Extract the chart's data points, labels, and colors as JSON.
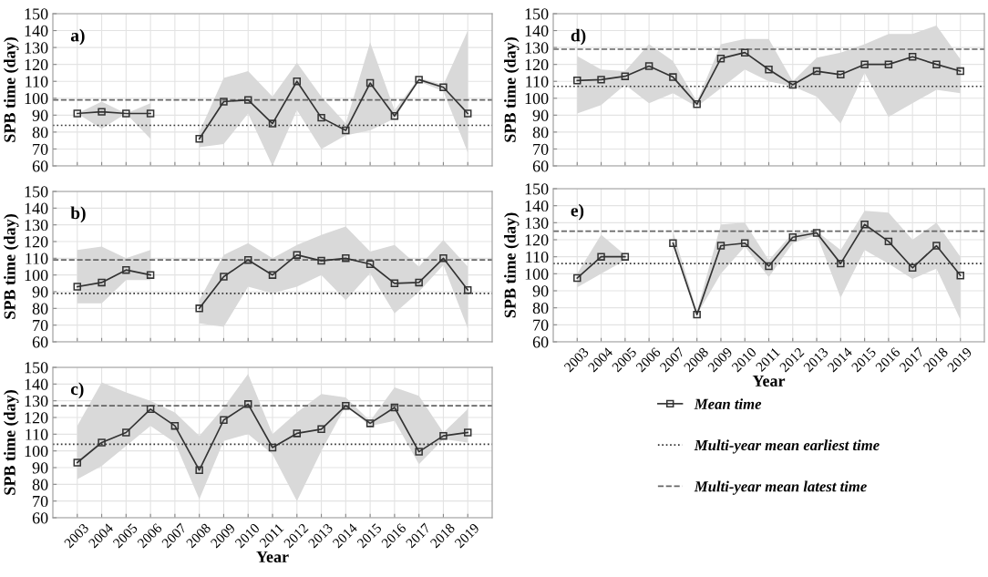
{
  "chart_data": [
    {
      "type": "line",
      "annotations": [
        "a)"
      ],
      "ylabel": "SPB time (day)",
      "categories": [
        "2003",
        "2004",
        "2005",
        "2006",
        "2007",
        "2008",
        "2009",
        "2010",
        "2011",
        "2012",
        "2013",
        "2014",
        "2015",
        "2016",
        "2017",
        "2018",
        "2019"
      ],
      "ylim": [
        60,
        150
      ],
      "yticks": [
        60,
        70,
        80,
        90,
        100,
        110,
        120,
        130,
        140,
        150
      ],
      "grid": true,
      "marker": "square",
      "line_style": "solid",
      "tick_labels": "y",
      "series": [
        {
          "color": "#333333",
          "values": [
            91,
            92,
            91,
            91,
            null,
            76,
            98,
            99,
            85,
            110,
            88.5,
            81,
            109,
            89.5,
            111,
            106.5,
            91
          ],
          "lower": [
            91,
            82,
            91,
            76,
            null,
            71,
            73,
            91,
            60,
            93,
            70,
            78,
            81,
            88,
            110,
            104,
            68
          ],
          "upper": [
            91,
            98,
            91,
            97,
            null,
            80,
            112,
            116,
            101,
            121,
            101,
            85,
            133,
            93,
            112,
            108,
            140
          ]
        }
      ],
      "ref_lines": [
        {
          "axis": "y",
          "value": 99,
          "line_style": "dashed",
          "color": "#666666"
        },
        {
          "axis": "y",
          "value": 84,
          "line_style": "dotted",
          "color": "#333333"
        }
      ]
    },
    {
      "type": "line",
      "annotations": [
        "b)"
      ],
      "ylabel": "SPB time (day)",
      "categories": [
        "2003",
        "2004",
        "2005",
        "2006",
        "2007",
        "2008",
        "2009",
        "2010",
        "2011",
        "2012",
        "2013",
        "2014",
        "2015",
        "2016",
        "2017",
        "2018",
        "2019"
      ],
      "ylim": [
        60,
        150
      ],
      "yticks": [
        60,
        70,
        80,
        90,
        100,
        110,
        120,
        130,
        140,
        150
      ],
      "grid": true,
      "marker": "square",
      "line_style": "solid",
      "tick_labels": "y",
      "series": [
        {
          "color": "#333333",
          "values": [
            93,
            95.5,
            103,
            100,
            null,
            80,
            99,
            109,
            100,
            112,
            108.5,
            110,
            106.5,
            95,
            95.5,
            110,
            91
          ],
          "lower": [
            83,
            83,
            97,
            97,
            null,
            71,
            69,
            93,
            89,
            93,
            100,
            85,
            101,
            77,
            90,
            106,
            68
          ],
          "upper": [
            115,
            117,
            110,
            115,
            null,
            85,
            112,
            119,
            110,
            118,
            124,
            129,
            114,
            118,
            105,
            121,
            105
          ]
        }
      ],
      "ref_lines": [
        {
          "axis": "y",
          "value": 109,
          "line_style": "dashed",
          "color": "#666666"
        },
        {
          "axis": "y",
          "value": 89,
          "line_style": "dotted",
          "color": "#333333"
        }
      ]
    },
    {
      "type": "line",
      "annotations": [
        "c)"
      ],
      "ylabel": "SPB time (day)",
      "xlabel": "Year",
      "categories": [
        "2003",
        "2004",
        "2005",
        "2006",
        "2007",
        "2008",
        "2009",
        "2010",
        "2011",
        "2012",
        "2013",
        "2014",
        "2015",
        "2016",
        "2017",
        "2018",
        "2019"
      ],
      "ylim": [
        60,
        150
      ],
      "yticks": [
        60,
        70,
        80,
        90,
        100,
        110,
        120,
        130,
        140,
        150
      ],
      "grid": true,
      "marker": "square",
      "line_style": "solid",
      "series": [
        {
          "color": "#333333",
          "values": [
            93,
            105,
            111,
            125,
            115,
            88.5,
            118.5,
            128,
            102,
            110.5,
            113,
            127,
            116.5,
            126,
            99.5,
            109,
            111
          ],
          "lower": [
            83,
            91,
            103,
            115,
            105,
            71,
            106,
            110,
            98,
            70,
            100,
            127,
            115,
            118,
            92,
            107,
            105
          ],
          "upper": [
            115,
            141,
            135,
            130,
            123,
            109,
            126,
            146,
            110,
            123,
            134,
            132,
            118,
            138,
            133,
            111,
            125
          ]
        }
      ],
      "ref_lines": [
        {
          "axis": "y",
          "value": 127,
          "line_style": "dashed",
          "color": "#666666"
        },
        {
          "axis": "y",
          "value": 104,
          "line_style": "dotted",
          "color": "#333333"
        }
      ]
    },
    {
      "type": "line",
      "annotations": [
        "d)"
      ],
      "ylabel": "SPB time (day)",
      "categories": [
        "2003",
        "2004",
        "2005",
        "2006",
        "2007",
        "2008",
        "2009",
        "2010",
        "2011",
        "2012",
        "2013",
        "2014",
        "2015",
        "2016",
        "2017",
        "2018",
        "2019"
      ],
      "ylim": [
        60,
        150
      ],
      "yticks": [
        60,
        70,
        80,
        90,
        100,
        110,
        120,
        130,
        140,
        150
      ],
      "grid": true,
      "marker": "square",
      "line_style": "solid",
      "tick_labels": "y",
      "series": [
        {
          "color": "#333333",
          "values": [
            110.5,
            111,
            113,
            119,
            112.5,
            96.5,
            123.5,
            127,
            117,
            108,
            116,
            114,
            120,
            120,
            124.5,
            120,
            116
          ],
          "lower": [
            91,
            96,
            108,
            97,
            103,
            95,
            106,
            117,
            110,
            107,
            101,
            85,
            115,
            89,
            97,
            105,
            103
          ],
          "upper": [
            125,
            117,
            116,
            132,
            122,
            98,
            132,
            135,
            135,
            110,
            124,
            127,
            132,
            138,
            138,
            143,
            123
          ]
        }
      ],
      "ref_lines": [
        {
          "axis": "y",
          "value": 129,
          "line_style": "dashed",
          "color": "#666666"
        },
        {
          "axis": "y",
          "value": 107,
          "line_style": "dotted",
          "color": "#333333"
        }
      ]
    },
    {
      "type": "line",
      "annotations": [
        "e)"
      ],
      "ylabel": "SPB time (day)",
      "xlabel": "Year",
      "categories": [
        "2003",
        "2004",
        "2005",
        "2006",
        "2007",
        "2008",
        "2009",
        "2010",
        "2011",
        "2012",
        "2013",
        "2014",
        "2015",
        "2016",
        "2017",
        "2018",
        "2019"
      ],
      "ylim": [
        60,
        150
      ],
      "yticks": [
        60,
        70,
        80,
        90,
        100,
        110,
        120,
        130,
        140,
        150
      ],
      "grid": true,
      "marker": "square",
      "line_style": "solid",
      "legend": "bottom",
      "series": [
        {
          "name": "Mean time",
          "color": "#333333",
          "values": [
            97.5,
            110,
            110,
            null,
            118,
            76,
            116.5,
            118,
            104.5,
            121.5,
            124,
            106,
            129,
            119,
            103.5,
            116.5,
            99
          ],
          "lower": [
            92,
            100,
            108,
            null,
            118,
            76,
            100,
            116,
            98,
            118,
            123,
            86,
            114,
            106,
            97,
            103,
            73
          ],
          "upper": [
            100,
            123,
            111,
            null,
            125,
            78,
            129,
            130,
            108,
            124,
            125,
            114,
            137,
            136,
            120,
            130,
            110
          ]
        }
      ],
      "ref_lines": [
        {
          "axis": "y",
          "value": 106,
          "line_style": "dotted",
          "color": "#333333",
          "label": "Multi-year mean earliest time"
        },
        {
          "axis": "y",
          "value": 125,
          "line_style": "dashed",
          "color": "#666666",
          "label": "Multi-year mean latest time"
        }
      ]
    }
  ]
}
